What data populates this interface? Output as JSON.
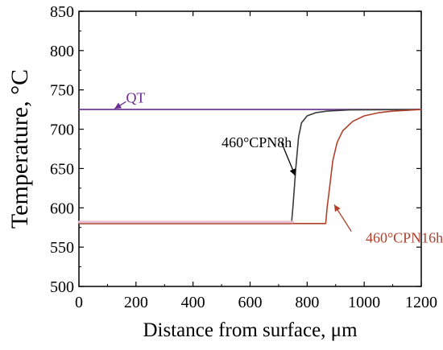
{
  "chart_data": {
    "type": "line",
    "xlabel": "Distance from surface, μm",
    "ylabel": "Temperature, °C",
    "xlim": [
      0,
      1200
    ],
    "ylim": [
      500,
      850
    ],
    "xticks": [
      0,
      200,
      400,
      600,
      800,
      1000,
      1200
    ],
    "yticks": [
      500,
      550,
      600,
      650,
      700,
      750,
      800,
      850
    ],
    "grid": false,
    "series": [
      {
        "name": "QT",
        "color": "#6a2c8e",
        "points": [
          [
            0,
            725
          ],
          [
            1200,
            725
          ]
        ]
      },
      {
        "name": "460°CPN8h",
        "color": "#3a3a3a",
        "points": [
          [
            0,
            580
          ],
          [
            745,
            580
          ],
          [
            750,
            600
          ],
          [
            760,
            650
          ],
          [
            770,
            690
          ],
          [
            780,
            708
          ],
          [
            800,
            717
          ],
          [
            830,
            721
          ],
          [
            870,
            723
          ],
          [
            950,
            724.5
          ],
          [
            1200,
            725
          ]
        ]
      },
      {
        "name": "460°CPN16h",
        "color": "#b0402a",
        "points": [
          [
            0,
            580
          ],
          [
            865,
            580
          ],
          [
            870,
            600
          ],
          [
            880,
            630
          ],
          [
            890,
            660
          ],
          [
            905,
            683
          ],
          [
            925,
            698
          ],
          [
            960,
            710
          ],
          [
            1000,
            717
          ],
          [
            1050,
            721
          ],
          [
            1100,
            723
          ],
          [
            1200,
            725
          ]
        ]
      },
      {
        "name": "",
        "color": "#e7bfd0",
        "points": [
          [
            0,
            582
          ],
          [
            750,
            582
          ]
        ]
      }
    ],
    "annotations": [
      {
        "text": "QT",
        "color": "#6a2c8e",
        "label_at": [
          165,
          740
        ],
        "arrow_from": [
          165,
          735
        ],
        "arrow_to": [
          125,
          726
        ]
      },
      {
        "text": "460°CPN8h",
        "color": "#000000",
        "label_at": [
          500,
          683
        ],
        "arrow_from": [
          710,
          683
        ],
        "arrow_to": [
          758,
          641
        ]
      },
      {
        "text": "460°CPN16h",
        "color": "#b0402a",
        "label_at": [
          1005,
          562
        ],
        "arrow_from": [
          955,
          570
        ],
        "arrow_to": [
          895,
          604
        ]
      }
    ]
  }
}
